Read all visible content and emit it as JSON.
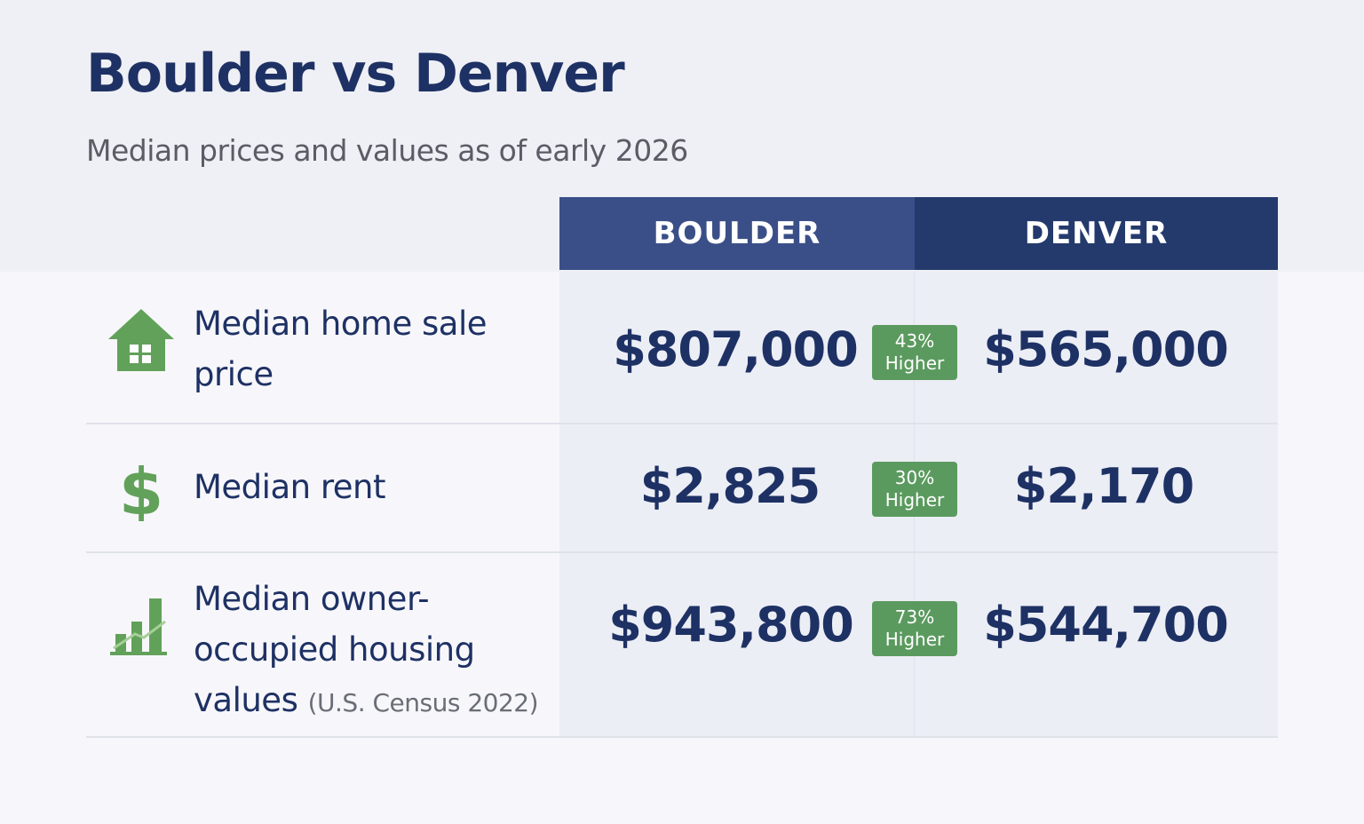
{
  "header": {
    "title": "Boulder vs Denver",
    "subtitle": "Median prices and values as of early 2026"
  },
  "table": {
    "columns": [
      "BOULDER",
      "DENVER"
    ],
    "rows": [
      {
        "label": "Median home sale price",
        "boulder": "$807,000",
        "badge": {
          "percent": "43%",
          "word": "Higher"
        },
        "denver": "$565,000"
      },
      {
        "label": "Median rent",
        "boulder": "$2,825",
        "badge": {
          "percent": "30%",
          "word": "Higher"
        },
        "denver": "$2,170"
      },
      {
        "label": "Median owner-occupied housing values",
        "note": "(U.S. Census 2022)",
        "boulder": "$943,800",
        "badge": {
          "percent": "73%",
          "word": "Higher"
        },
        "denver": "$544,700"
      }
    ]
  }
}
